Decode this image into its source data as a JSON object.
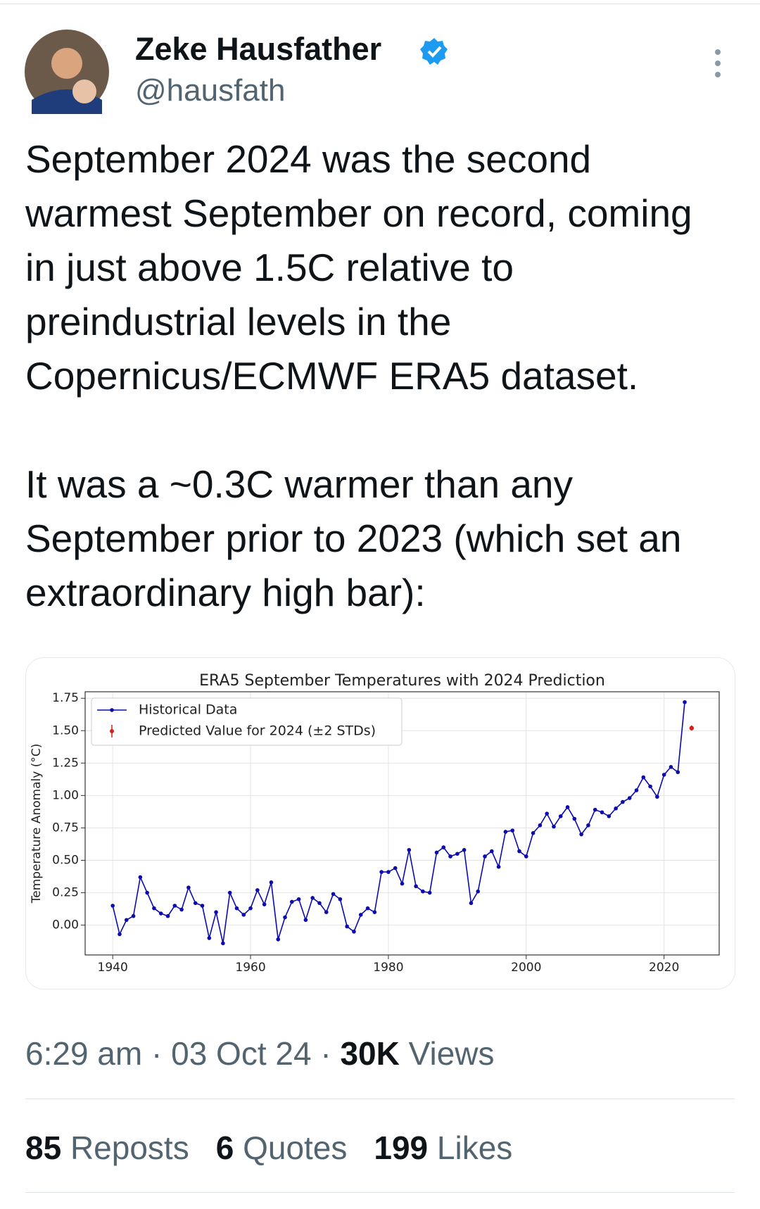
{
  "tweet": {
    "author": {
      "name": "Zeke Hausfather",
      "handle": "@hausfath"
    },
    "paragraphs": [
      "September 2024 was the second warmest September on record, coming in just above 1.5C relative to preindustrial levels in the Copernicus/ECMWF ERA5 dataset.",
      "It was a ~0.3C warmer than any September prior to 2023 (which set an extraordinary high bar):"
    ],
    "time": "6:29 am",
    "separator": "·",
    "date": "03 Oct 24",
    "views": "30K",
    "views_label": "Views",
    "stats": [
      {
        "count": "85",
        "label": "Reposts"
      },
      {
        "count": "6",
        "label": "Quotes"
      },
      {
        "count": "199",
        "label": "Likes"
      }
    ]
  },
  "chart_data": {
    "type": "line",
    "title": "ERA5 September Temperatures with 2024 Prediction",
    "y_label": "Temperature Anomaly (°C)",
    "xlim": [
      1936,
      2028
    ],
    "ylim": [
      -0.23,
      1.8
    ],
    "xticks": [
      1940,
      1960,
      1980,
      2000,
      2020
    ],
    "yticks": [
      {
        "value": 0,
        "label": "0.00"
      },
      {
        "value": 0.25,
        "label": "0.25"
      },
      {
        "value": 0.5,
        "label": "0.50"
      },
      {
        "value": 0.75,
        "label": "0.75"
      },
      {
        "value": 1,
        "label": "1.00"
      },
      {
        "value": 1.25,
        "label": "1.25"
      },
      {
        "value": 1.5,
        "label": "1.50"
      },
      {
        "value": 1.75,
        "label": "1.75"
      }
    ],
    "grid": true,
    "legend": "upper left",
    "series": [
      {
        "name": "Historical Data",
        "color": "#0b0bb0",
        "x": [
          1940,
          1941,
          1942,
          1943,
          1944,
          1945,
          1946,
          1947,
          1948,
          1949,
          1950,
          1951,
          1952,
          1953,
          1954,
          1955,
          1956,
          1957,
          1958,
          1959,
          1960,
          1961,
          1962,
          1963,
          1964,
          1965,
          1966,
          1967,
          1968,
          1969,
          1970,
          1971,
          1972,
          1973,
          1974,
          1975,
          1976,
          1977,
          1978,
          1979,
          1980,
          1981,
          1982,
          1983,
          1984,
          1985,
          1986,
          1987,
          1988,
          1989,
          1990,
          1991,
          1992,
          1993,
          1994,
          1995,
          1996,
          1997,
          1998,
          1999,
          2000,
          2001,
          2002,
          2003,
          2004,
          2005,
          2006,
          2007,
          2008,
          2009,
          2010,
          2011,
          2012,
          2013,
          2014,
          2015,
          2016,
          2017,
          2018,
          2019,
          2020,
          2021,
          2022,
          2023
        ],
        "values": [
          0.15,
          -0.07,
          0.04,
          0.07,
          0.37,
          0.25,
          0.13,
          0.09,
          0.07,
          0.15,
          0.12,
          0.29,
          0.17,
          0.15,
          -0.1,
          0.1,
          -0.14,
          0.25,
          0.13,
          0.08,
          0.13,
          0.27,
          0.16,
          0.33,
          -0.11,
          0.06,
          0.18,
          0.2,
          0.04,
          0.21,
          0.17,
          0.1,
          0.24,
          0.2,
          -0.01,
          -0.05,
          0.08,
          0.13,
          0.1,
          0.41,
          0.41,
          0.44,
          0.32,
          0.58,
          0.3,
          0.26,
          0.25,
          0.56,
          0.6,
          0.53,
          0.55,
          0.58,
          0.17,
          0.26,
          0.53,
          0.57,
          0.45,
          0.72,
          0.73,
          0.57,
          0.53,
          0.71,
          0.77,
          0.86,
          0.76,
          0.84,
          0.91,
          0.82,
          0.7,
          0.77,
          0.89,
          0.87,
          0.84,
          0.9,
          0.95,
          0.98,
          1.04,
          1.14,
          1.07,
          0.99,
          1.16,
          1.22,
          1.18,
          1.72
        ]
      },
      {
        "name": "Predicted Value for 2024 (±2 STDs)",
        "color": "#d62020",
        "x": [
          2024
        ],
        "values": [
          1.52
        ],
        "errors": [
          0.02
        ]
      }
    ]
  }
}
